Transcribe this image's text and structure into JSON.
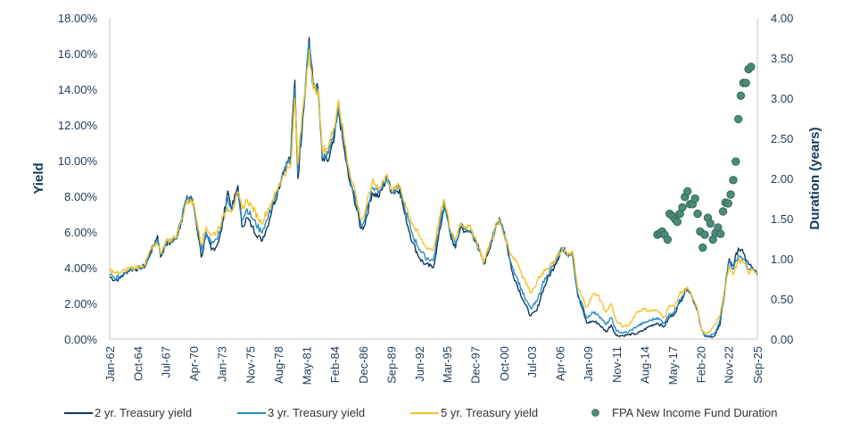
{
  "chart_data": {
    "type": "line",
    "title": "",
    "xlabel": "",
    "ylabel": "Yield",
    "y2label": "Duration (years)",
    "ylim": [
      0,
      18
    ],
    "y2lim": [
      0,
      4
    ],
    "y_ticks": [
      "0.00%",
      "2.00%",
      "4.00%",
      "6.00%",
      "8.00%",
      "10.00%",
      "12.00%",
      "14.00%",
      "16.00%",
      "18.00%"
    ],
    "y_tick_values": [
      0,
      2,
      4,
      6,
      8,
      10,
      12,
      14,
      16,
      18
    ],
    "y2_ticks": [
      "0.00",
      "0.50",
      "1.00",
      "1.50",
      "2.00",
      "2.50",
      "3.00",
      "3.50",
      "4.00"
    ],
    "y2_tick_values": [
      0,
      0.5,
      1,
      1.5,
      2,
      2.5,
      3,
      3.5,
      4
    ],
    "xlim": [
      1962.0,
      2025.67
    ],
    "x_ticks": [
      "Jan-62",
      "Oct-64",
      "Jul-67",
      "Apr-70",
      "Jan-73",
      "Nov-75",
      "Aug-78",
      "May-81",
      "Feb-84",
      "Dec-86",
      "Sep-89",
      "Jun-92",
      "Mar-95",
      "Dec-97",
      "Oct-00",
      "Jul-03",
      "Apr-06",
      "Jan-09",
      "Nov-11",
      "Aug-14",
      "May-17",
      "Feb-20",
      "Nov-22",
      "Sep-25"
    ],
    "x_tick_values": [
      1962.0,
      1964.75,
      1967.5,
      1970.25,
      1973.0,
      1975.83,
      1978.58,
      1981.33,
      1984.08,
      1986.92,
      1989.67,
      1992.42,
      1995.17,
      1997.92,
      2000.75,
      2003.5,
      2006.25,
      2009.0,
      2011.83,
      2014.58,
      2017.33,
      2020.08,
      2022.83,
      2025.67
    ],
    "legend_position": "bottom",
    "grid": false,
    "x": [
      1962.0,
      1962.5,
      1963.0,
      1963.5,
      1964.0,
      1964.5,
      1965.0,
      1965.5,
      1966.0,
      1966.7,
      1967.0,
      1967.5,
      1968.0,
      1968.5,
      1969.0,
      1969.5,
      1970.0,
      1970.3,
      1970.8,
      1971.0,
      1971.5,
      1972.0,
      1972.5,
      1973.0,
      1973.6,
      1974.0,
      1974.6,
      1975.0,
      1975.5,
      1976.0,
      1976.9,
      1977.5,
      1978.0,
      1978.5,
      1979.0,
      1979.8,
      1980.2,
      1980.5,
      1981.0,
      1981.6,
      1982.0,
      1982.5,
      1982.9,
      1983.5,
      1984.0,
      1984.5,
      1985.0,
      1985.5,
      1986.0,
      1986.7,
      1987.0,
      1987.8,
      1988.5,
      1989.2,
      1989.8,
      1990.5,
      1991.0,
      1991.8,
      1992.5,
      1993.0,
      1993.8,
      1994.5,
      1994.9,
      1995.5,
      1996.0,
      1996.5,
      1997.0,
      1997.5,
      1998.0,
      1998.8,
      1999.5,
      2000.3,
      2000.8,
      2001.5,
      2002.0,
      2002.8,
      2003.4,
      2004.0,
      2004.5,
      2005.0,
      2005.8,
      2006.5,
      2007.0,
      2007.5,
      2008.0,
      2008.9,
      2009.5,
      2010.0,
      2010.8,
      2011.3,
      2011.8,
      2012.5,
      2013.0,
      2013.8,
      2014.5,
      2015.0,
      2015.8,
      2016.5,
      2017.0,
      2017.5,
      2018.0,
      2018.8,
      2019.3,
      2019.8,
      2020.2,
      2020.5,
      2021.0,
      2021.5,
      2022.0,
      2022.5,
      2022.9,
      2023.3,
      2023.8,
      2024.3,
      2024.8,
      2025.2,
      2025.67
    ],
    "series": [
      {
        "name": "2 yr. Treasury yield",
        "color": "#0d3a5c",
        "values": [
          3.5,
          3.3,
          3.4,
          3.7,
          3.9,
          3.9,
          4.0,
          4.1,
          4.8,
          5.8,
          4.6,
          5.3,
          5.4,
          5.6,
          6.5,
          7.8,
          8.0,
          7.3,
          5.5,
          4.6,
          5.8,
          5.0,
          5.2,
          6.1,
          8.3,
          7.3,
          8.6,
          6.3,
          6.8,
          6.3,
          5.5,
          6.3,
          7.4,
          8.2,
          9.3,
          10.3,
          14.5,
          9.0,
          12.5,
          16.9,
          14.2,
          14.0,
          10.0,
          10.0,
          11.0,
          12.8,
          10.8,
          9.0,
          8.0,
          6.2,
          6.3,
          8.2,
          8.0,
          9.0,
          8.2,
          8.4,
          7.0,
          5.4,
          4.5,
          4.2,
          4.0,
          6.2,
          7.6,
          5.8,
          5.1,
          6.3,
          6.0,
          6.0,
          5.5,
          4.2,
          5.4,
          6.8,
          6.0,
          3.9,
          3.1,
          2.0,
          1.3,
          1.6,
          2.6,
          3.3,
          4.2,
          5.1,
          4.8,
          4.8,
          2.5,
          0.9,
          1.0,
          0.9,
          0.4,
          0.8,
          0.2,
          0.2,
          0.25,
          0.3,
          0.5,
          0.7,
          0.9,
          0.7,
          1.2,
          1.4,
          2.0,
          2.9,
          2.3,
          1.6,
          0.5,
          0.15,
          0.12,
          0.2,
          0.8,
          2.9,
          4.5,
          4.1,
          5.1,
          4.8,
          4.2,
          4.0,
          3.6
        ]
      },
      {
        "name": "3 yr. Treasury yield",
        "color": "#2a8bc1",
        "values": [
          3.6,
          3.4,
          3.5,
          3.75,
          3.95,
          3.95,
          4.05,
          4.15,
          4.9,
          5.6,
          4.7,
          5.4,
          5.5,
          5.6,
          6.6,
          7.8,
          7.9,
          7.3,
          5.8,
          4.9,
          6.0,
          5.3,
          5.6,
          6.4,
          7.9,
          7.2,
          8.3,
          6.7,
          7.3,
          6.8,
          6.0,
          6.7,
          7.6,
          8.2,
          9.2,
          10.1,
          14.0,
          9.3,
          12.8,
          16.6,
          14.1,
          14.0,
          10.2,
          10.4,
          11.4,
          13.0,
          11.0,
          9.3,
          8.3,
          6.4,
          6.6,
          8.5,
          8.3,
          9.1,
          8.2,
          8.5,
          7.3,
          5.8,
          5.0,
          4.6,
          4.4,
          6.6,
          7.7,
          5.9,
          5.3,
          6.4,
          6.1,
          6.1,
          5.5,
          4.2,
          5.5,
          6.8,
          5.9,
          4.2,
          3.5,
          2.3,
          1.7,
          2.1,
          3.0,
          3.6,
          4.3,
          5.1,
          4.7,
          4.8,
          2.6,
          1.2,
          1.5,
          1.4,
          0.8,
          1.2,
          0.45,
          0.35,
          0.4,
          0.7,
          0.9,
          1.0,
          1.2,
          0.9,
          1.4,
          1.5,
          2.2,
          2.9,
          2.3,
          1.6,
          0.5,
          0.18,
          0.17,
          0.35,
          1.1,
          3.0,
          4.4,
          3.9,
          4.7,
          4.5,
          3.9,
          3.9,
          3.6
        ]
      },
      {
        "name": "5 yr. Treasury yield",
        "color": "#f5c22e",
        "values": [
          3.9,
          3.7,
          3.7,
          3.85,
          4.0,
          4.0,
          4.1,
          4.2,
          5.0,
          5.3,
          4.8,
          5.5,
          5.6,
          5.7,
          6.5,
          7.6,
          7.8,
          7.5,
          6.0,
          5.3,
          6.3,
          5.8,
          6.0,
          6.6,
          7.4,
          7.2,
          8.2,
          7.3,
          7.8,
          7.4,
          6.5,
          7.2,
          7.8,
          8.4,
          9.1,
          9.8,
          13.5,
          9.8,
          13.0,
          16.2,
          14.0,
          14.0,
          10.5,
          10.8,
          11.8,
          13.4,
          11.4,
          9.6,
          8.6,
          6.7,
          6.9,
          8.8,
          8.5,
          9.2,
          8.3,
          8.6,
          7.7,
          6.4,
          5.7,
          5.2,
          5.0,
          7.0,
          7.8,
          6.1,
          5.6,
          6.5,
          6.3,
          6.2,
          5.6,
          4.3,
          5.6,
          6.7,
          5.8,
          4.7,
          4.4,
          3.3,
          2.6,
          3.2,
          3.7,
          3.9,
          4.4,
          5.1,
          4.7,
          4.9,
          2.9,
          1.8,
          2.5,
          2.5,
          1.5,
          2.0,
          1.0,
          0.7,
          0.75,
          1.5,
          1.7,
          1.6,
          1.6,
          1.2,
          1.9,
          1.8,
          2.5,
          2.9,
          2.3,
          1.6,
          0.5,
          0.3,
          0.4,
          0.8,
          1.3,
          3.0,
          4.1,
          3.6,
          4.4,
          4.3,
          3.7,
          3.9,
          3.7
        ]
      }
    ],
    "scatter": {
      "name": "FPA New Income Fund Duration",
      "color": "#4d8a79",
      "axis": "right",
      "x": [
        2015.85,
        2016.1,
        2016.3,
        2016.55,
        2016.85,
        2017.05,
        2017.35,
        2017.6,
        2017.8,
        2018.05,
        2018.3,
        2018.55,
        2018.8,
        2019.05,
        2019.3,
        2019.55,
        2019.8,
        2020.05,
        2020.3,
        2020.5,
        2020.8,
        2021.05,
        2021.3,
        2021.55,
        2021.8,
        2022.05,
        2022.3,
        2022.55,
        2022.8,
        2023.05,
        2023.3,
        2023.55,
        2023.8,
        2024.05,
        2024.3,
        2024.55,
        2024.8,
        2025.05
      ],
      "values": [
        1.3,
        1.32,
        1.34,
        1.3,
        1.24,
        1.56,
        1.53,
        1.49,
        1.46,
        1.56,
        1.64,
        1.77,
        1.84,
        1.68,
        1.68,
        1.75,
        1.56,
        1.34,
        1.14,
        1.3,
        1.51,
        1.44,
        1.24,
        1.32,
        1.39,
        1.31,
        1.59,
        1.7,
        1.69,
        1.8,
        1.98,
        2.21,
        2.74,
        3.03,
        3.19,
        3.19,
        3.36,
        3.39
      ]
    }
  },
  "legend": {
    "items": [
      {
        "label": "2 yr. Treasury yield",
        "type": "line",
        "color": "#0d3a5c"
      },
      {
        "label": "3 yr. Treasury yield",
        "type": "line",
        "color": "#2a8bc1"
      },
      {
        "label": "5 yr. Treasury yield",
        "type": "line",
        "color": "#f5c22e"
      },
      {
        "label": "FPA New Income Fund Duration",
        "type": "dot",
        "color": "#4d8a79"
      }
    ]
  }
}
